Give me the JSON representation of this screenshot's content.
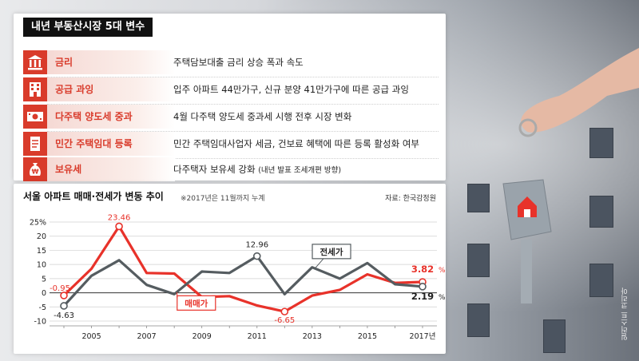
{
  "panel": {
    "title": "내년 부동산시장 5대 변수",
    "items": [
      {
        "icon": "bank-icon",
        "label": "금리",
        "desc": "주택담보대출 금리 상승 폭과 속도",
        "note": ""
      },
      {
        "icon": "building-icon",
        "label": "공급 과잉",
        "desc": "입주 아파트 44만가구, 신규 분양 41만가구에 따른 공급 과잉",
        "note": ""
      },
      {
        "icon": "money-icon",
        "label": "다주택 양도세 중과",
        "desc": "4월 다주택 양도세 중과세 시행 전후 시장 변화",
        "note": ""
      },
      {
        "icon": "document-icon",
        "label": "민간 주택임대 등록",
        "desc": "민간 주택임대사업자 세금, 건보료 혜택에 따른 등록 활성화 여부",
        "note": ""
      },
      {
        "icon": "won-bag-icon",
        "label": "보유세",
        "desc": "다주택자 보유세 강화",
        "note": "(내년 발표 조세개편 방향)"
      }
    ]
  },
  "colors": {
    "accent": "#d93b2b",
    "sale": "#e8322a",
    "jeonse": "#555c60"
  },
  "chart_data": {
    "type": "line",
    "title": "서울 아파트 매매·전세가 변동 추이",
    "subtitle": "※2017년은 11월까지 누계",
    "source": "자료: 한국감정원",
    "x": [
      2004,
      2005,
      2006,
      2007,
      2008,
      2009,
      2010,
      2011,
      2012,
      2013,
      2014,
      2015,
      2016,
      2017
    ],
    "x_tick_labels": [
      "2005",
      "2007",
      "2009",
      "2011",
      "2013",
      "2015",
      "2017년"
    ],
    "x_ticks": [
      2005,
      2007,
      2009,
      2011,
      2013,
      2015,
      2017
    ],
    "y_ticks": [
      25,
      20,
      15,
      10,
      5,
      0,
      -5,
      -10
    ],
    "y_tick_labels": [
      "25%",
      "20",
      "15",
      "10",
      "5",
      "0",
      "-5",
      "-10"
    ],
    "ylim": [
      -10,
      25
    ],
    "series": [
      {
        "name": "매매가",
        "values": [
          -0.95,
          8.5,
          23.46,
          7.0,
          6.8,
          -1.5,
          -1.2,
          -4.5,
          -6.65,
          -1.0,
          1.0,
          6.5,
          3.5,
          3.82
        ]
      },
      {
        "name": "전세가",
        "values": [
          -4.63,
          6.0,
          11.5,
          2.8,
          -0.5,
          7.5,
          7.0,
          12.96,
          -0.5,
          9.0,
          5.0,
          10.5,
          3.0,
          2.19
        ]
      }
    ],
    "data_labels": [
      {
        "series": 0,
        "index": 0,
        "text": "-0.95",
        "dx": -5,
        "dy": -6
      },
      {
        "series": 0,
        "index": 2,
        "text": "23.46",
        "dx": 0,
        "dy": -8
      },
      {
        "series": 0,
        "index": 8,
        "text": "-6.65",
        "dx": 0,
        "dy": 14
      },
      {
        "series": 0,
        "index": 13,
        "text": "3.82",
        "dx": 0,
        "dy": -12
      },
      {
        "series": 1,
        "index": 0,
        "text": "-4.63",
        "dx": 0,
        "dy": 15
      },
      {
        "series": 1,
        "index": 7,
        "text": "12.96",
        "dx": 0,
        "dy": -11
      },
      {
        "series": 1,
        "index": 13,
        "text": "2.19",
        "dx": 0,
        "dy": 16
      }
    ],
    "percent_suffix": "%"
  },
  "credit": "일러스트 코리아"
}
